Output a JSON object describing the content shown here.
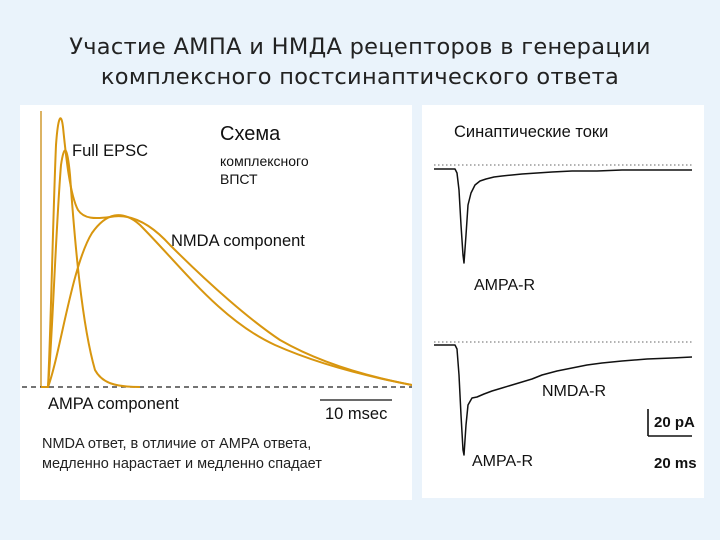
{
  "slide": {
    "title_line1": "Участие АМПА и НМДА рецепторов в генерации",
    "title_line2": "комплексного постсинаптического ответа"
  },
  "schema_panel": {
    "heading": "Схема",
    "sub_line1": "комплексного",
    "sub_line2": "ВПСТ",
    "full_epsc_label": "Full EPSC",
    "nmda_label": "NMDA component",
    "ampa_label": "AMPA component",
    "scale_label": "10 msec",
    "trace_color": "#d8960f"
  },
  "caption": {
    "line1": "NMDA ответ, в отличие от АМРА ответа,",
    "line2": "медленно нарастает и медленно спадает"
  },
  "currents_panel": {
    "heading": "Синаптические токи",
    "top_trace_label": "AMPA-R",
    "bottom_nmda_label": "NMDA-R",
    "bottom_ampa_label": "AMPA-R",
    "scale_current": "20 pA",
    "scale_time": "20 ms"
  }
}
